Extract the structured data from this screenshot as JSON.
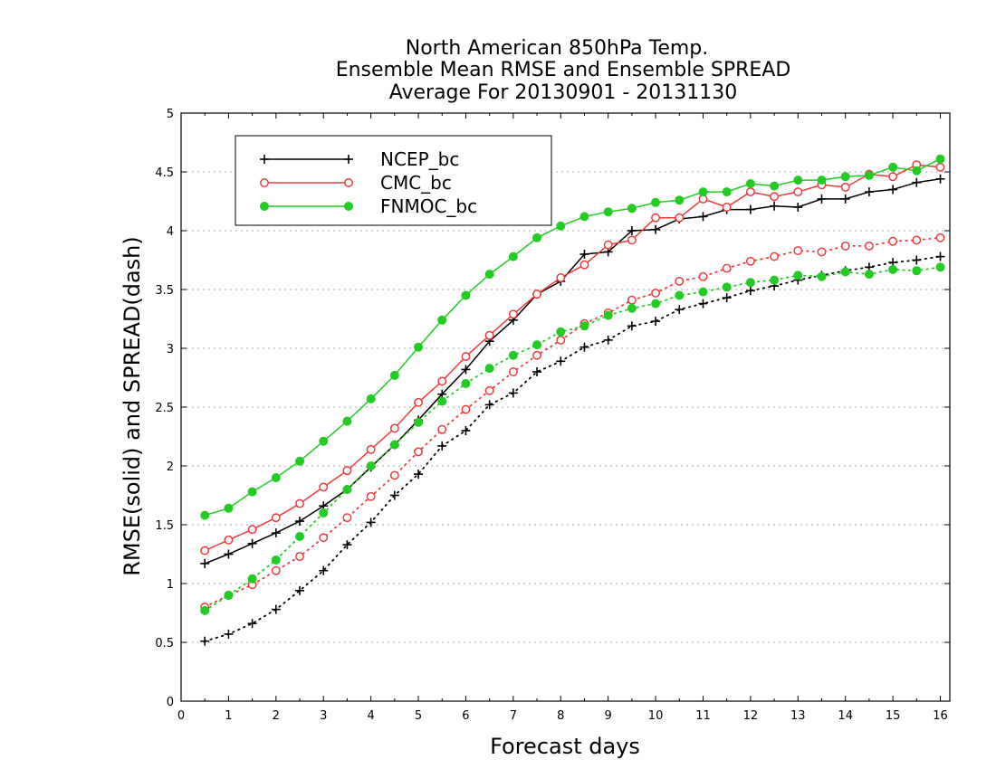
{
  "chart_data": {
    "type": "line",
    "title": "North American 850hPa Temp.",
    "subtitle": "Ensemble Mean RMSE and Ensemble SPREAD",
    "subtitle2": "Average For 20130901 - 20131130",
    "xlabel": "Forecast days",
    "ylabel": "RMSE(solid) and SPREAD(dash)",
    "xlim": [
      0,
      16.2
    ],
    "ylim": [
      0,
      5
    ],
    "xticks": [
      "0",
      "1",
      "2",
      "3",
      "4",
      "5",
      "6",
      "7",
      "8",
      "9",
      "10",
      "11",
      "12",
      "13",
      "14",
      "15",
      "16"
    ],
    "yticks": [
      "0",
      "0.5",
      "1",
      "1.5",
      "2",
      "2.5",
      "3",
      "3.5",
      "4",
      "4.5",
      "5"
    ],
    "grid": true,
    "legend_position": "top-left",
    "x": [
      0.5,
      1,
      1.5,
      2,
      2.5,
      3,
      3.5,
      4,
      4.5,
      5,
      5.5,
      6,
      6.5,
      7,
      7.5,
      8,
      8.5,
      9,
      9.5,
      10,
      10.5,
      11,
      11.5,
      12,
      12.5,
      13,
      13.5,
      14,
      14.5,
      15,
      15.5,
      16
    ],
    "series": [
      {
        "name": "NCEP_bc",
        "style": "solid",
        "marker": "plus",
        "color": "#000000",
        "values": [
          1.17,
          1.25,
          1.34,
          1.43,
          1.53,
          1.66,
          1.8,
          1.99,
          2.18,
          2.39,
          2.61,
          2.82,
          3.06,
          3.24,
          3.46,
          3.57,
          3.8,
          3.82,
          4.0,
          4.01,
          4.1,
          4.12,
          4.18,
          4.18,
          4.21,
          4.2,
          4.27,
          4.27,
          4.33,
          4.35,
          4.41,
          4.44
        ]
      },
      {
        "name": "CMC_bc",
        "style": "solid",
        "marker": "open-circle",
        "color": "#ee3b3b",
        "values": [
          1.28,
          1.37,
          1.46,
          1.56,
          1.68,
          1.82,
          1.96,
          2.14,
          2.32,
          2.54,
          2.72,
          2.93,
          3.11,
          3.29,
          3.46,
          3.6,
          3.71,
          3.88,
          3.92,
          4.11,
          4.11,
          4.27,
          4.2,
          4.33,
          4.29,
          4.33,
          4.39,
          4.37,
          4.48,
          4.46,
          4.56,
          4.54
        ]
      },
      {
        "name": "FNMOC_bc",
        "style": "solid",
        "marker": "filled-circle",
        "color": "#22cc22",
        "values": [
          1.58,
          1.64,
          1.78,
          1.9,
          2.04,
          2.21,
          2.38,
          2.57,
          2.77,
          3.01,
          3.24,
          3.45,
          3.63,
          3.78,
          3.94,
          4.04,
          4.12,
          4.16,
          4.19,
          4.24,
          4.26,
          4.33,
          4.33,
          4.4,
          4.38,
          4.43,
          4.43,
          4.46,
          4.47,
          4.54,
          4.51,
          4.61
        ]
      },
      {
        "name": "NCEP_bc",
        "style": "dotted",
        "marker": "plus",
        "color": "#000000",
        "values": [
          0.51,
          0.57,
          0.66,
          0.78,
          0.94,
          1.11,
          1.33,
          1.52,
          1.75,
          1.93,
          2.17,
          2.3,
          2.52,
          2.62,
          2.8,
          2.89,
          3.01,
          3.07,
          3.19,
          3.23,
          3.33,
          3.38,
          3.43,
          3.49,
          3.53,
          3.58,
          3.62,
          3.66,
          3.69,
          3.73,
          3.75,
          3.78
        ]
      },
      {
        "name": "CMC_bc",
        "style": "dotted",
        "marker": "open-circle",
        "color": "#ee3b3b",
        "values": [
          0.8,
          0.9,
          0.99,
          1.11,
          1.23,
          1.39,
          1.56,
          1.74,
          1.92,
          2.12,
          2.31,
          2.48,
          2.64,
          2.8,
          2.94,
          3.07,
          3.21,
          3.3,
          3.41,
          3.47,
          3.57,
          3.61,
          3.68,
          3.74,
          3.78,
          3.83,
          3.82,
          3.87,
          3.87,
          3.91,
          3.92,
          3.94
        ]
      },
      {
        "name": "FNMOC_bc",
        "style": "dotted",
        "marker": "filled-circle",
        "color": "#22cc22",
        "values": [
          0.77,
          0.9,
          1.04,
          1.2,
          1.4,
          1.6,
          1.8,
          2.0,
          2.18,
          2.37,
          2.55,
          2.7,
          2.83,
          2.94,
          3.03,
          3.14,
          3.19,
          3.28,
          3.34,
          3.38,
          3.45,
          3.48,
          3.52,
          3.56,
          3.58,
          3.62,
          3.61,
          3.65,
          3.63,
          3.67,
          3.66,
          3.69
        ]
      }
    ],
    "legend": [
      {
        "label": "NCEP_bc",
        "marker": "plus",
        "color": "#000000"
      },
      {
        "label": "CMC_bc",
        "marker": "open-circle",
        "color": "#ee3b3b"
      },
      {
        "label": "FNMOC_bc",
        "marker": "filled-circle",
        "color": "#22cc22"
      }
    ]
  }
}
